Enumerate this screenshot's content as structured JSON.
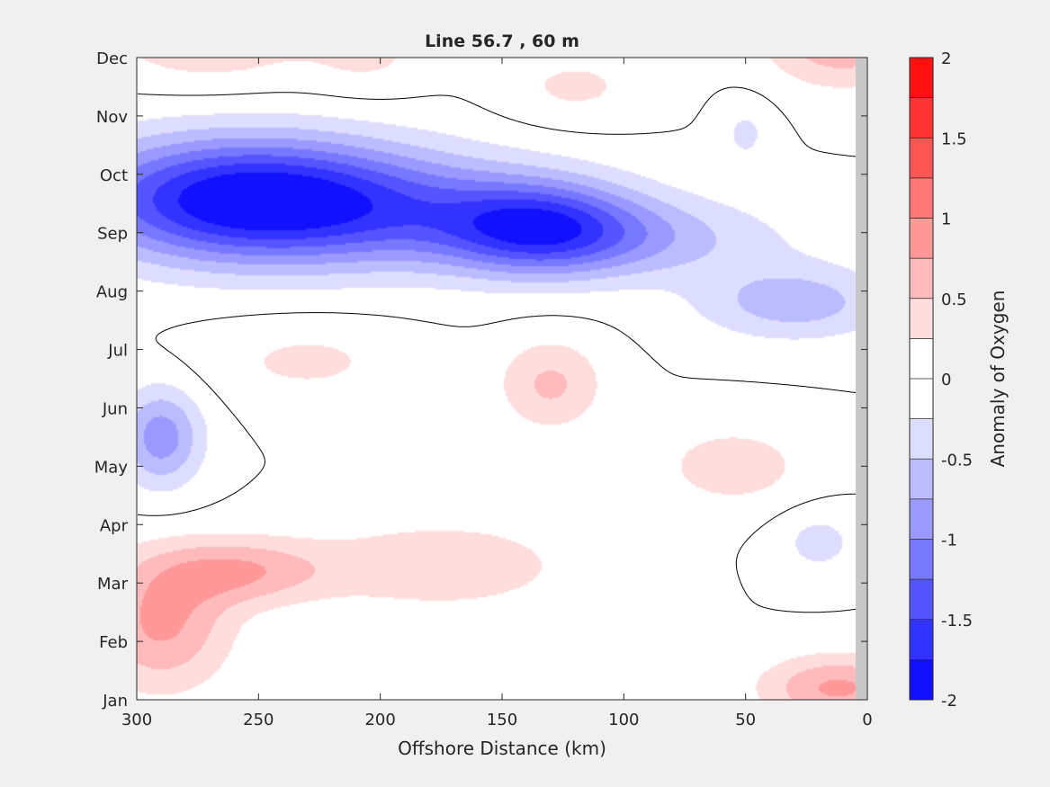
{
  "chart_data": {
    "type": "heatmap",
    "subtype": "filled-contour",
    "title": "Line 56.7 , 60 m",
    "xlabel": "Offshore Distance (km)",
    "ylabel": "",
    "xlim": [
      300,
      0
    ],
    "x_reversed": true,
    "xticks": [
      "300",
      "250",
      "200",
      "150",
      "100",
      "50",
      "0"
    ],
    "ylim": [
      "Jan",
      "Dec"
    ],
    "yticks": [
      "Jan",
      "Feb",
      "Mar",
      "Apr",
      "May",
      "Jun",
      "Jul",
      "Aug",
      "Sep",
      "Oct",
      "Nov",
      "Dec"
    ],
    "grid": false,
    "colorbar": {
      "label": "Anomaly of Oxygen",
      "limits": [
        -2,
        2
      ],
      "step": 0.25,
      "tick_labels": [
        "-2",
        "-1.5",
        "-1",
        "-0.5",
        "0",
        "0.5",
        "1",
        "1.5",
        "2"
      ],
      "low_color": "#0000ff",
      "mid_color": "#ffffff",
      "high_color": "#ff0000"
    },
    "zero_contour": true,
    "no_data_strip_color": "#c8c8c8",
    "features": [
      {
        "x": 260,
        "month": 9.6,
        "value": -1.6,
        "rx": 48,
        "ry": 0.75
      },
      {
        "x": 205,
        "month": 9.4,
        "value": -0.9,
        "rx": 55,
        "ry": 0.7
      },
      {
        "x": 135,
        "month": 9.1,
        "value": -1.2,
        "rx": 28,
        "ry": 0.55
      },
      {
        "x": 100,
        "month": 8.9,
        "value": -0.6,
        "rx": 45,
        "ry": 0.5
      },
      {
        "x": 30,
        "month": 7.8,
        "value": -0.65,
        "rx": 28,
        "ry": 0.45
      },
      {
        "x": 290,
        "month": 5.5,
        "value": -0.9,
        "rx": 12,
        "ry": 0.6
      },
      {
        "x": 20,
        "month": 3.7,
        "value": -0.35,
        "rx": 12,
        "ry": 0.4
      },
      {
        "x": 50,
        "month": 10.7,
        "value": -0.3,
        "rx": 8,
        "ry": 0.4
      },
      {
        "x": 290,
        "month": 2.3,
        "value": 0.8,
        "rx": 20,
        "ry": 0.8
      },
      {
        "x": 258,
        "month": 3.2,
        "value": 0.7,
        "rx": 25,
        "ry": 0.4
      },
      {
        "x": 175,
        "month": 3.3,
        "value": 0.45,
        "rx": 38,
        "ry": 0.55
      },
      {
        "x": 130,
        "month": 6.4,
        "value": 0.55,
        "rx": 15,
        "ry": 0.55
      },
      {
        "x": 230,
        "month": 6.8,
        "value": 0.3,
        "rx": 30,
        "ry": 0.5
      },
      {
        "x": 270,
        "month": 12.4,
        "value": 0.5,
        "rx": 30,
        "ry": 0.6
      },
      {
        "x": 10,
        "month": 12.4,
        "value": 0.8,
        "rx": 22,
        "ry": 0.6
      },
      {
        "x": 12,
        "month": 1.2,
        "value": 0.8,
        "rx": 22,
        "ry": 0.4
      },
      {
        "x": 55,
        "month": 5.0,
        "value": 0.4,
        "rx": 22,
        "ry": 0.5
      },
      {
        "x": 205,
        "month": 12.1,
        "value": 0.3,
        "rx": 18,
        "ry": 0.5
      },
      {
        "x": 120,
        "month": 11.5,
        "value": 0.3,
        "rx": 22,
        "ry": 0.45
      }
    ]
  }
}
